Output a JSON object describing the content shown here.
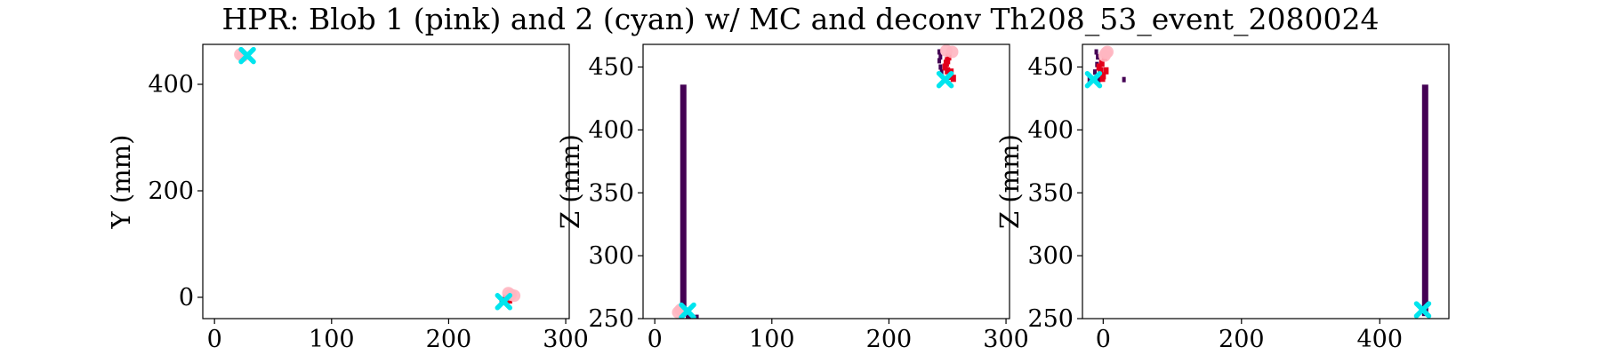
{
  "figure": {
    "title": "HPR: Blob 1 (pink) and 2 (cyan) w/ MC and deconv Th208_53_event_2080024"
  },
  "colors": {
    "track_dark": "#440154",
    "mc_red": "#e3001b",
    "blob1_pink": "#ffb6c1",
    "blob2_cyan": "#00e5ee",
    "axis": "#000000",
    "background": "#ffffff"
  },
  "chart_data": [
    {
      "type": "scatter",
      "title": "",
      "xlabel": "",
      "ylabel": "Y (mm)",
      "xlim": [
        -10,
        303
      ],
      "ylim": [
        -40,
        475
      ],
      "xticks": [
        0,
        100,
        200,
        300
      ],
      "yticks": [
        0,
        200,
        400
      ],
      "series": [
        {
          "kind": "track_points",
          "points": [
            [
              245,
              -5
            ],
            [
              247,
              -8
            ],
            [
              249,
              -3
            ],
            [
              251,
              -6
            ],
            [
              248,
              0
            ],
            [
              252,
              -2
            ]
          ]
        },
        {
          "kind": "mc_points",
          "points": [
            [
              250,
              -2
            ],
            [
              252,
              -5
            ],
            [
              249,
              -4
            ]
          ]
        },
        {
          "kind": "blob1",
          "marker": "o",
          "points": [
            [
              22,
              456
            ],
            [
              24,
              453
            ],
            [
              253,
              5
            ],
            [
              256,
              3
            ],
            [
              251,
              8
            ]
          ]
        },
        {
          "kind": "blob2",
          "marker": "X",
          "points": [
            [
              28,
              454
            ],
            [
              247,
              -8
            ]
          ]
        }
      ]
    },
    {
      "type": "scatter",
      "title": "",
      "xlabel": "",
      "ylabel": "Z (mm)",
      "xlim": [
        -10,
        303
      ],
      "ylim": [
        250,
        468
      ],
      "xticks": [
        0,
        100,
        200,
        300
      ],
      "yticks": [
        250,
        300,
        350,
        400,
        450
      ],
      "series": [
        {
          "kind": "track_column",
          "x": 24,
          "y_range": [
            252,
            436
          ]
        },
        {
          "kind": "track_points",
          "points": [
            [
              243,
              462
            ],
            [
              244,
              450
            ],
            [
              245,
              446
            ],
            [
              243,
              455
            ],
            [
              248,
              440
            ],
            [
              252,
              442
            ],
            [
              244,
              458
            ],
            [
              28,
              252
            ],
            [
              30,
              251
            ],
            [
              36,
              251
            ]
          ]
        },
        {
          "kind": "mc_points",
          "points": [
            [
              249,
              453
            ],
            [
              250,
              447
            ],
            [
              252,
              443
            ],
            [
              251,
              458
            ],
            [
              248,
              450
            ],
            [
              253,
              446
            ],
            [
              255,
              441
            ],
            [
              250,
              455
            ]
          ]
        },
        {
          "kind": "blob1",
          "marker": "o",
          "points": [
            [
              254,
              462
            ],
            [
              249,
              463
            ],
            [
              20,
              255
            ],
            [
              22,
              257
            ]
          ]
        },
        {
          "kind": "blob2",
          "marker": "X",
          "points": [
            [
              248,
              440
            ],
            [
              28,
              256
            ]
          ]
        }
      ]
    },
    {
      "type": "scatter",
      "title": "",
      "xlabel": "",
      "ylabel": "Z (mm)",
      "xlim": [
        -30,
        500
      ],
      "ylim": [
        250,
        468
      ],
      "xticks": [
        0,
        200,
        400
      ],
      "yticks": [
        250,
        300,
        350,
        400,
        450
      ],
      "series": [
        {
          "kind": "track_column",
          "x": 465,
          "y_range": [
            252,
            436
          ]
        },
        {
          "kind": "track_points",
          "points": [
            [
              -10,
              462
            ],
            [
              -9,
              452
            ],
            [
              -12,
              446
            ],
            [
              -6,
              440
            ],
            [
              -20,
              440
            ],
            [
              30,
              440
            ],
            [
              -8,
              458
            ],
            [
              2,
              460
            ]
          ]
        },
        {
          "kind": "mc_points",
          "points": [
            [
              -2,
              453
            ],
            [
              -4,
              447
            ],
            [
              0,
              443
            ],
            [
              2,
              458
            ],
            [
              -6,
              450
            ],
            [
              4,
              447
            ],
            [
              -1,
              441
            ]
          ]
        },
        {
          "kind": "blob1",
          "marker": "o",
          "points": [
            [
              6,
              462
            ],
            [
              4,
              461
            ],
            [
              2,
              459
            ]
          ]
        },
        {
          "kind": "blob2",
          "marker": "X",
          "points": [
            [
              -14,
              440
            ],
            [
              462,
              257
            ]
          ]
        }
      ]
    }
  ]
}
